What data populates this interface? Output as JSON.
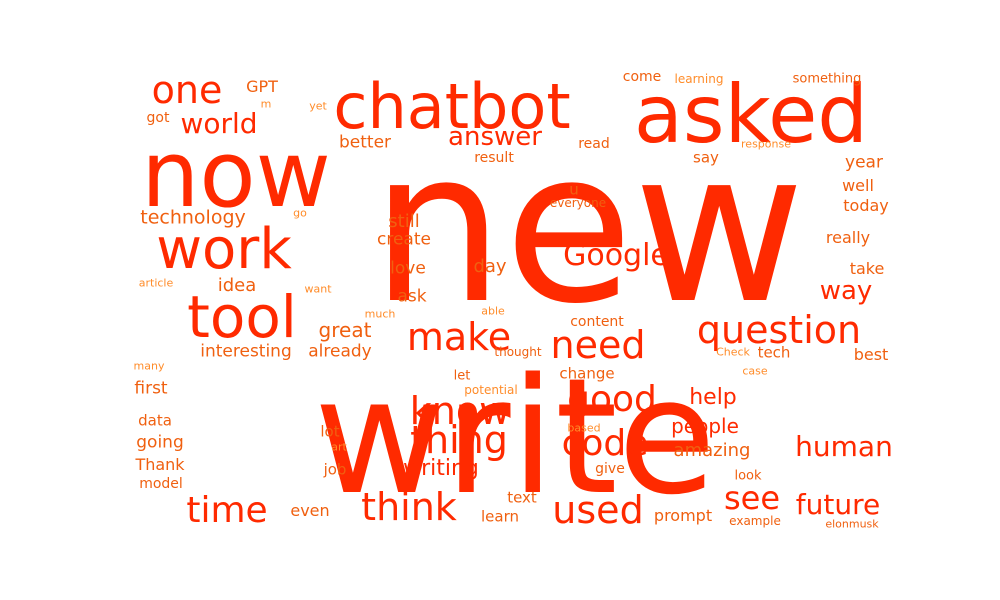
{
  "colors": {
    "background": "#ffffff",
    "primary": "#ff2a00",
    "secondary": "#f06010",
    "tertiary": "#ff8c2a"
  },
  "words": {
    "new": "new",
    "write": "write",
    "now": "now",
    "asked": "asked",
    "chatbot": "chatbot",
    "work": "work",
    "tool": "tool",
    "question": "question",
    "make": "make",
    "need": "need",
    "know": "know",
    "good": "good",
    "thing": "thing",
    "code": "code",
    "think": "think",
    "used": "used",
    "time": "time",
    "see": "see",
    "future": "future",
    "human": "human",
    "one": "one",
    "world": "world",
    "Google": "Google",
    "answer": "answer",
    "way": "way",
    "help": "help",
    "people": "people",
    "amazing": "amazing",
    "writing": "writing",
    "technology": "technology",
    "idea": "idea",
    "great": "great",
    "interesting": "interesting",
    "already": "already",
    "first": "first",
    "data": "data",
    "going": "going",
    "Thank": "Thank",
    "model": "model",
    "many": "many",
    "article": "article",
    "GPT": "GPT",
    "m": "m",
    "got": "got",
    "yet": "yet",
    "better": "better",
    "much": "much",
    "still": "still",
    "create": "create",
    "love": "love",
    "ask": "ask",
    "day": "day",
    "able": "able",
    "let": "let",
    "potential": "potential",
    "lot": "lot",
    "art": "art",
    "based": "based",
    "job": "job",
    "even": "even",
    "text": "text",
    "learn": "learn",
    "give": "give",
    "prompt": "prompt",
    "example": "example",
    "look": "look",
    "elonmusk": "elonmusk",
    "change": "change",
    "content": "content",
    "thought": "thought",
    "Check": "Check",
    "tech": "tech",
    "best": "best",
    "case": "case",
    "take": "take",
    "really": "really",
    "today": "today",
    "well": "well",
    "year": "year",
    "response": "response",
    "something": "something",
    "come": "come",
    "learning": "learning",
    "read": "read",
    "result": "result",
    "say": "say",
    "u": "u",
    "everyone": "everyone",
    "go": "go",
    "want": "want"
  }
}
